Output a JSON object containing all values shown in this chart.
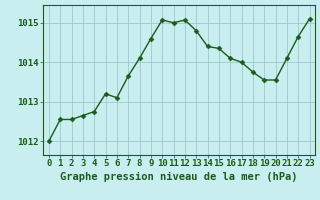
{
  "x": [
    0,
    1,
    2,
    3,
    4,
    5,
    6,
    7,
    8,
    9,
    10,
    11,
    12,
    13,
    14,
    15,
    16,
    17,
    18,
    19,
    20,
    21,
    22,
    23
  ],
  "y": [
    1012.0,
    1012.55,
    1012.55,
    1012.65,
    1012.75,
    1013.2,
    1013.1,
    1013.65,
    1014.1,
    1014.6,
    1015.07,
    1015.0,
    1015.07,
    1014.8,
    1014.4,
    1014.35,
    1014.1,
    1014.0,
    1013.75,
    1013.55,
    1013.55,
    1014.1,
    1014.65,
    1015.1
  ],
  "line_color": "#1a5c1a",
  "marker": "D",
  "marker_size": 2.5,
  "bg_color": "#c8eef0",
  "grid_color": "#9dc8d0",
  "axis_color": "#1a5c1a",
  "xlabel": "Graphe pression niveau de la mer (hPa)",
  "xlabel_fontsize": 7.5,
  "xtick_labels": [
    "0",
    "1",
    "2",
    "3",
    "4",
    "5",
    "6",
    "7",
    "8",
    "9",
    "10",
    "11",
    "12",
    "13",
    "14",
    "15",
    "16",
    "17",
    "18",
    "19",
    "20",
    "21",
    "22",
    "23"
  ],
  "ytick_labels": [
    "1012",
    "1013",
    "1014",
    "1015"
  ],
  "ytick_values": [
    1012,
    1013,
    1014,
    1015
  ],
  "ylim": [
    1011.65,
    1015.45
  ],
  "xlim": [
    -0.5,
    23.5
  ],
  "tick_fontsize": 6.5,
  "line_width": 1.0
}
